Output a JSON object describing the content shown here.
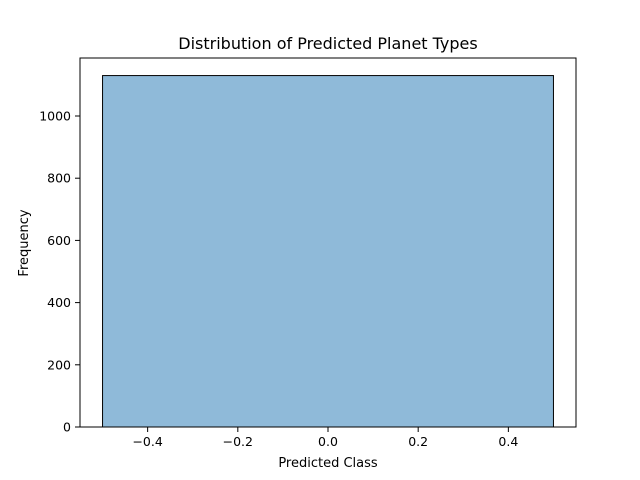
{
  "chart_data": {
    "type": "bar",
    "title": "Distribution of Predicted Planet Types",
    "xlabel": "Predicted Class",
    "ylabel": "Frequency",
    "bins": [
      {
        "x_start": -0.5,
        "x_end": 0.5,
        "value": 1130
      }
    ],
    "xlim": [
      -0.55,
      0.55
    ],
    "ylim": [
      0,
      1186.5
    ],
    "x_ticks": [
      -0.4,
      -0.2,
      0.0,
      0.2,
      0.4
    ],
    "x_tick_labels": [
      "−0.4",
      "−0.2",
      "0.0",
      "0.2",
      "0.4"
    ],
    "y_ticks": [
      0,
      200,
      400,
      600,
      800,
      1000
    ],
    "y_tick_labels": [
      "0",
      "200",
      "400",
      "600",
      "800",
      "1000"
    ],
    "grid": false,
    "bar_fill": "#8fbad9",
    "bar_edge": "#000000"
  }
}
